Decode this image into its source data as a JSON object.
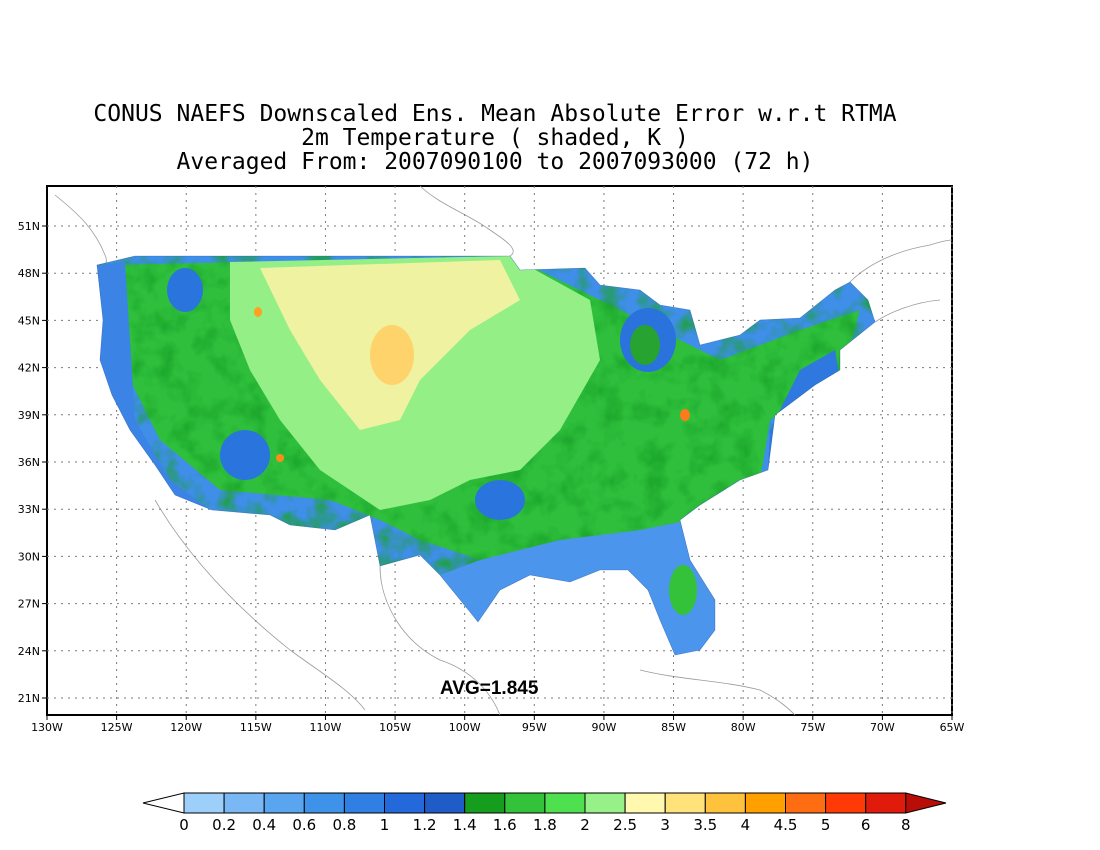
{
  "title": {
    "line1": "CONUS NAEFS Downscaled Ens. Mean Absolute Error w.r.t RTMA",
    "line2": "2m Temperature ( shaded, K )",
    "line3": "Averaged From: 2007090100 to 2007093000 (72 h)"
  },
  "avg_label": "AVG=1.845",
  "map": {
    "lon_labels": [
      "130W",
      "125W",
      "120W",
      "115W",
      "110W",
      "105W",
      "100W",
      "95W",
      "90W",
      "85W",
      "80W",
      "75W",
      "70W",
      "65W"
    ],
    "lat_labels": [
      "51N",
      "48N",
      "45N",
      "42N",
      "39N",
      "36N",
      "33N",
      "30N",
      "27N",
      "24N",
      "21N"
    ],
    "lon_range": [
      -130,
      -65
    ],
    "lat_range": [
      20,
      52
    ],
    "grid": "dotted"
  },
  "colorbar": {
    "labels": [
      "0",
      "0.2",
      "0.4",
      "0.6",
      "0.8",
      "1",
      "1.2",
      "1.4",
      "1.6",
      "1.8",
      "2",
      "2.5",
      "3",
      "3.5",
      "4",
      "4.5",
      "5",
      "6",
      "8"
    ],
    "colors": [
      "#9ccffa",
      "#7ab8f5",
      "#5aa5f0",
      "#3f92ea",
      "#2f80e2",
      "#2469dc",
      "#1f5cc8",
      "#159e1d",
      "#34c23b",
      "#4fe050",
      "#97f088",
      "#fff8ae",
      "#ffe27a",
      "#ffc23c",
      "#ff9f00",
      "#ff6d12",
      "#ff3a06",
      "#e01b0b",
      "#b90e08"
    ],
    "under_color": "#ffffff",
    "over_color": "#b90e08"
  }
}
